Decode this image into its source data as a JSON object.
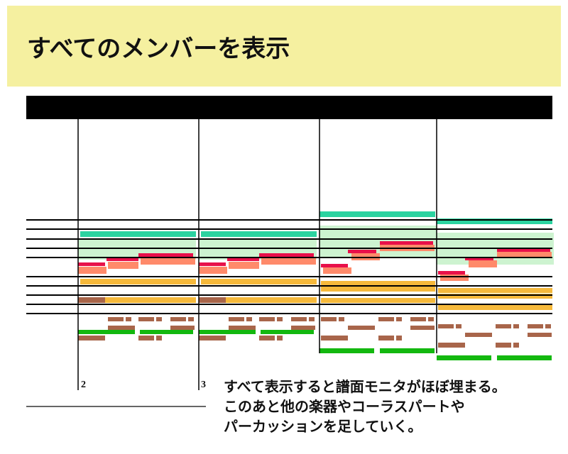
{
  "header": {
    "title": "すべてのメンバーを表示"
  },
  "score": {
    "measure_numbers": [
      "2",
      "3"
    ]
  },
  "caption": {
    "lines": [
      "すべて表示すると譜面モニタがほぼ埋まる。",
      "このあと他の楽器やコーラスパートや",
      "パーカッションを足していく。"
    ]
  }
}
